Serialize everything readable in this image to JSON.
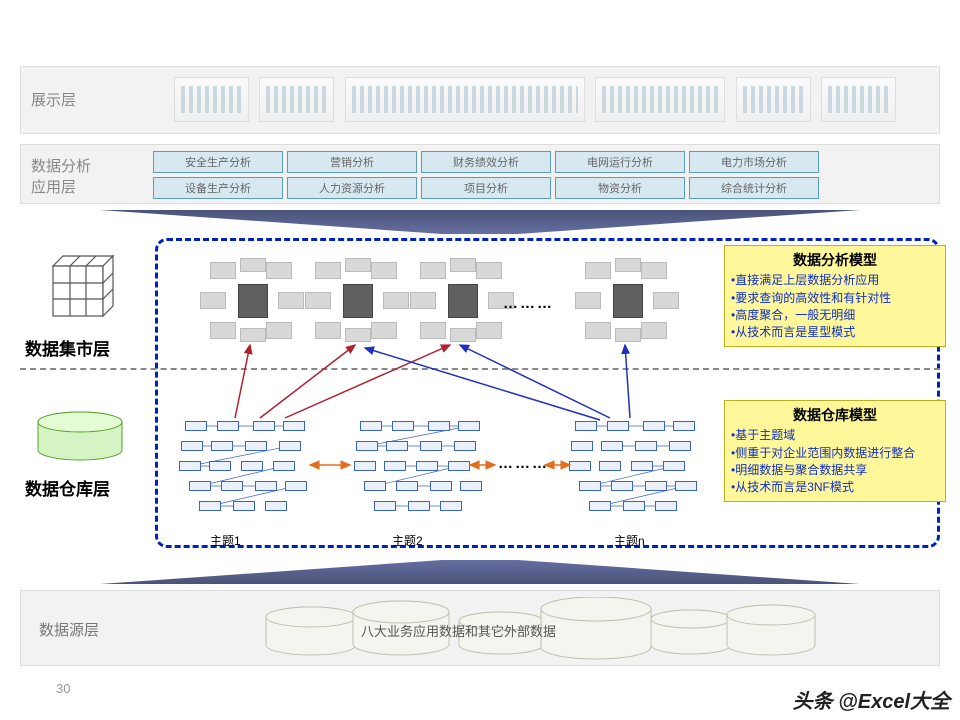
{
  "layers": {
    "presentation": "展示层",
    "analysis": "数据分析\n应用层",
    "mart": "数据集市层",
    "warehouse": "数据仓库层",
    "source": "数据源层"
  },
  "app_row1": [
    "安全生产分析",
    "营销分析",
    "财务绩效分析",
    "电网运行分析",
    "电力市场分析"
  ],
  "app_row2": [
    "设备生产分析",
    "人力资源分析",
    "项目分析",
    "物资分析",
    "综合统计分析"
  ],
  "topics": {
    "t1": "主题1",
    "t2": "主题2",
    "tn": "主题n",
    "dots": "………"
  },
  "cluster_dots": "………",
  "note_analysis": {
    "title": "数据分析模型",
    "items": [
      "直接满足上层数据分析应用",
      "要求查询的高效性和有针对性",
      "高度聚合，一般无明细",
      "从技术而言是星型模式"
    ]
  },
  "note_warehouse": {
    "title": "数据仓库模型",
    "items": [
      "基于主题域",
      "侧重于对企业范围内数据进行整合",
      "明细数据与聚合数据共享",
      "从技术而言是3NF模式"
    ]
  },
  "source_text": "八大业务应用数据和其它外部数据",
  "page_num": "30",
  "watermark": "头条 @Excel大全",
  "colors": {
    "note_bg": "#fff79a",
    "dash": "#0020c0",
    "cyl_fill": "#d4f4c4",
    "cyl_stroke": "#5aa02a",
    "arrow_red": "#b02030",
    "arrow_blue": "#2030c0",
    "arrow_orange": "#e07020"
  }
}
